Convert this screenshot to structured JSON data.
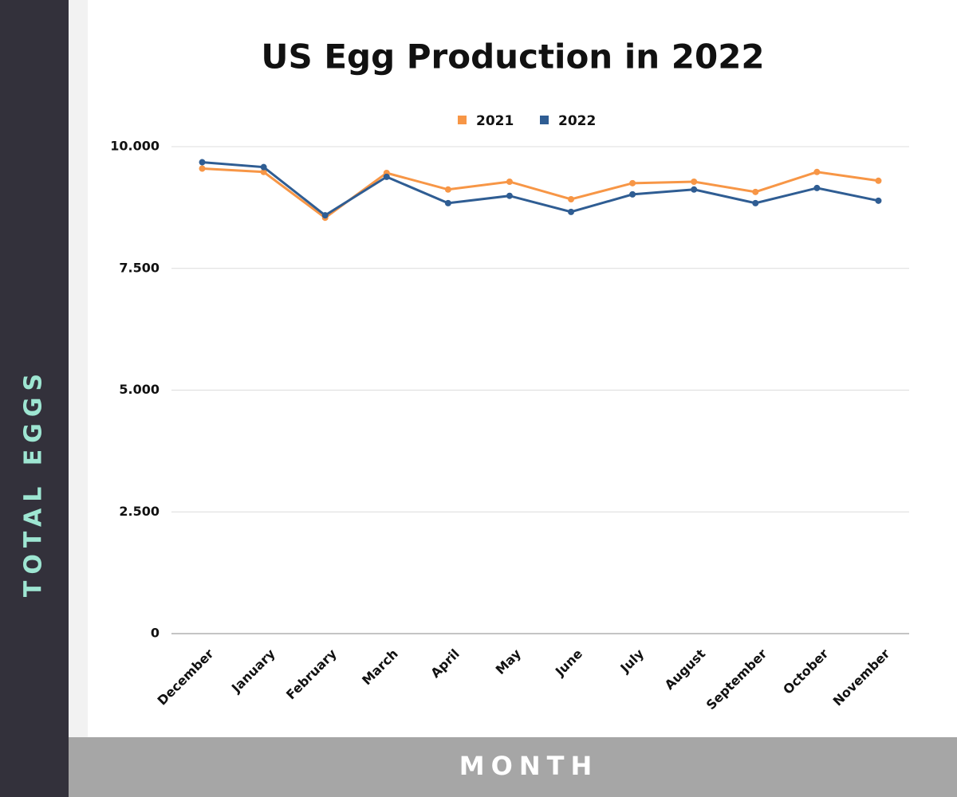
{
  "chart_data": {
    "type": "line",
    "title": "US Egg Production in 2022",
    "y_label": "TOTAL EGGS",
    "x_label": "MONTH",
    "categories": [
      "December",
      "January",
      "February",
      "March",
      "April",
      "May",
      "June",
      "July",
      "August",
      "September",
      "October",
      "November"
    ],
    "series": [
      {
        "name": "2021",
        "color": "#f79646",
        "values": [
          9550,
          9480,
          8540,
          9460,
          9120,
          9280,
          8920,
          9250,
          9280,
          9070,
          9480,
          9300
        ]
      },
      {
        "name": "2022",
        "color": "#2f5d93",
        "values": [
          9680,
          9580,
          8590,
          9380,
          8840,
          8990,
          8660,
          9020,
          9120,
          8840,
          9150,
          8890
        ]
      }
    ],
    "ylim": [
      0,
      10000
    ],
    "yticks": [
      0,
      {
        "value": 2500,
        "label": "2.500"
      },
      {
        "value": 5000,
        "label": "5.000"
      },
      {
        "value": 7500,
        "label": "7.500"
      },
      {
        "value": 10000,
        "label": "10.000"
      }
    ],
    "grid": true,
    "legend": "top"
  }
}
